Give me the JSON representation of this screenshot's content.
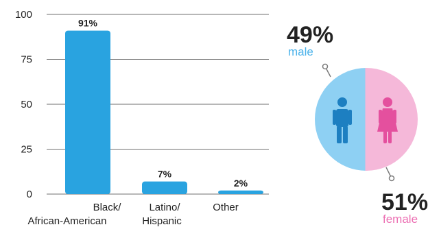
{
  "chart_data": [
    {
      "type": "bar",
      "categories": [
        "Black/\nAfrican-American",
        "Latino/\nHispanic",
        "Other"
      ],
      "values": [
        91,
        7,
        2
      ],
      "data_labels": [
        "91%",
        "7%",
        "2%"
      ],
      "yticks": [
        0,
        25,
        50,
        75,
        100
      ],
      "ylim": [
        0,
        100
      ],
      "grid": true,
      "colors": {
        "bar": "#29a3e0",
        "grid": "#6f6f6f",
        "text": "#222222"
      }
    },
    {
      "type": "pie",
      "categories": [
        "male",
        "female"
      ],
      "values": [
        49,
        51
      ],
      "labels": [
        "49%",
        "51%"
      ],
      "colors": {
        "male": "#8ed0f3",
        "female": "#f5b8d9",
        "male_text": "#4db3ea",
        "female_text": "#ec6fb3",
        "icon_male": "#1d7fc1",
        "icon_female": "#e4509e",
        "leader": "#7a7a7a"
      }
    }
  ],
  "gender": {
    "male_value": "49%",
    "male_label": "male",
    "female_value": "51%",
    "female_label": "female"
  }
}
